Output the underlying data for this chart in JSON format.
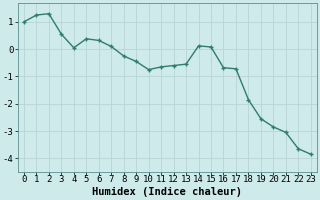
{
  "x": [
    0,
    1,
    2,
    3,
    4,
    5,
    6,
    7,
    8,
    9,
    10,
    11,
    12,
    13,
    14,
    15,
    16,
    17,
    18,
    19,
    20,
    21,
    22,
    23
  ],
  "y": [
    1.0,
    1.25,
    1.3,
    0.55,
    0.05,
    0.38,
    0.32,
    0.1,
    -0.25,
    -0.45,
    -0.75,
    -0.65,
    -0.6,
    -0.55,
    0.12,
    0.08,
    -0.68,
    -0.72,
    -1.85,
    -2.55,
    -2.85,
    -3.05,
    -3.65,
    -3.85
  ],
  "line_color": "#2e7d6e",
  "marker": "+",
  "marker_size": 3.5,
  "marker_linewidth": 1.0,
  "xlabel": "Humidex (Indice chaleur)",
  "bg_color": "#ceeaea",
  "grid_color_major": "#b8d4d4",
  "grid_color_minor": "#c8e0e0",
  "xlim": [
    -0.5,
    23.5
  ],
  "ylim": [
    -4.5,
    1.7
  ],
  "yticks": [
    -4,
    -3,
    -2,
    -1,
    0,
    1
  ],
  "xticks": [
    0,
    1,
    2,
    3,
    4,
    5,
    6,
    7,
    8,
    9,
    10,
    11,
    12,
    13,
    14,
    15,
    16,
    17,
    18,
    19,
    20,
    21,
    22,
    23
  ],
  "xlabel_fontsize": 7.5,
  "tick_fontsize": 6.5,
  "linewidth": 1.0
}
